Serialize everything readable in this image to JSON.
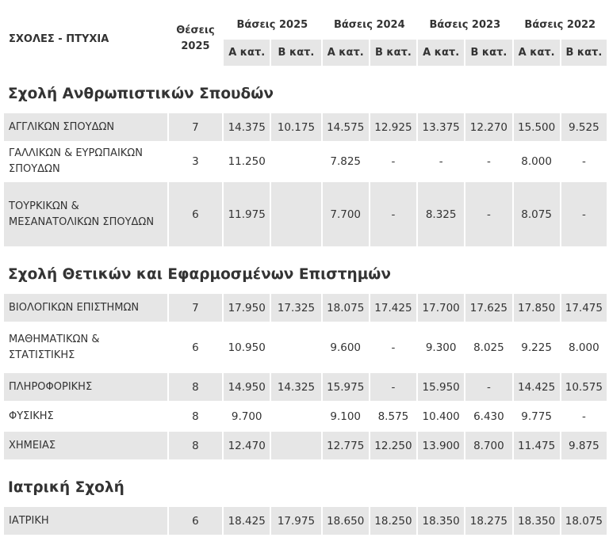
{
  "header": {
    "school_col": "ΣΧΟΛΕΣ - ΠΤΥΧΙΑ",
    "seats_col": "Θέσεις 2025",
    "years": [
      "Βάσεις 2025",
      "Βάσεις 2024",
      "Βάσεις 2023",
      "Βάσεις 2022"
    ],
    "cat_a": "Α κατ.",
    "cat_b": "Β κατ."
  },
  "sections": [
    {
      "title": "Σχολή Ανθρωπιστικών Σπουδών",
      "rows": [
        {
          "name": "ΑΓΓΛΙΚΩΝ ΣΠΟΥΔΩΝ",
          "seats": "7",
          "vals": [
            "14.375",
            "10.175",
            "14.575",
            "12.925",
            "13.375",
            "12.270",
            "15.500",
            "9.525"
          ]
        },
        {
          "name": "ΓΑΛΛΙΚΩΝ & ΕΥΡΩΠΑΙΚΩΝ ΣΠΟΥΔΩΝ",
          "seats": "3",
          "vals": [
            "11.250",
            "",
            "7.825",
            "-",
            "-",
            "-",
            "8.000",
            "-"
          ]
        },
        {
          "name": "ΤΟΥΡΚΙΚΩΝ & ΜΕΣΑΝΑΤΟΛΙΚΩΝ ΣΠΟΥΔΩΝ",
          "seats": "6",
          "vals": [
            "11.975",
            "",
            "7.700",
            "-",
            "8.325",
            "-",
            "8.075",
            "-"
          ]
        }
      ]
    },
    {
      "title": "Σχολή Θετικών και Εφαρμοσμένων Επιστημών",
      "rows": [
        {
          "name": "ΒΙΟΛΟΓΙΚΩΝ ΕΠΙΣΤΗΜΩΝ",
          "seats": "7",
          "vals": [
            "17.950",
            "17.325",
            "18.075",
            "17.425",
            "17.700",
            "17.625",
            "17.850",
            "17.475"
          ]
        },
        {
          "name": "ΜΑΘΗΜΑΤΙΚΩΝ & ΣΤΑΤΙΣΤΙΚΗΣ",
          "seats": "6",
          "vals": [
            "10.950",
            "",
            "9.600",
            "-",
            "9.300",
            "8.025",
            "9.225",
            "8.000"
          ]
        },
        {
          "name": "ΠΛΗΡΟΦΟΡΙΚΗΣ",
          "seats": "8",
          "vals": [
            "14.950",
            "14.325",
            "15.975",
            "-",
            "15.950",
            "-",
            "14.425",
            "10.575"
          ]
        },
        {
          "name": "ΦΥΣΙΚΗΣ",
          "seats": "8",
          "vals": [
            "9.700",
            "",
            "9.100",
            "8.575",
            "10.400",
            "6.430",
            "9.775",
            "-"
          ]
        },
        {
          "name": "ΧΗΜΕΙΑΣ",
          "seats": "8",
          "vals": [
            "12.470",
            "",
            "12.775",
            "12.250",
            "13.900",
            "8.700",
            "11.475",
            "9.875"
          ]
        }
      ]
    },
    {
      "title": "Ιατρική Σχολή",
      "rows": [
        {
          "name": "ΙΑΤΡΙΚΗ",
          "seats": "6",
          "vals": [
            "18.425",
            "17.975",
            "18.650",
            "18.250",
            "18.350",
            "18.275",
            "18.350",
            "18.075"
          ]
        }
      ]
    }
  ]
}
